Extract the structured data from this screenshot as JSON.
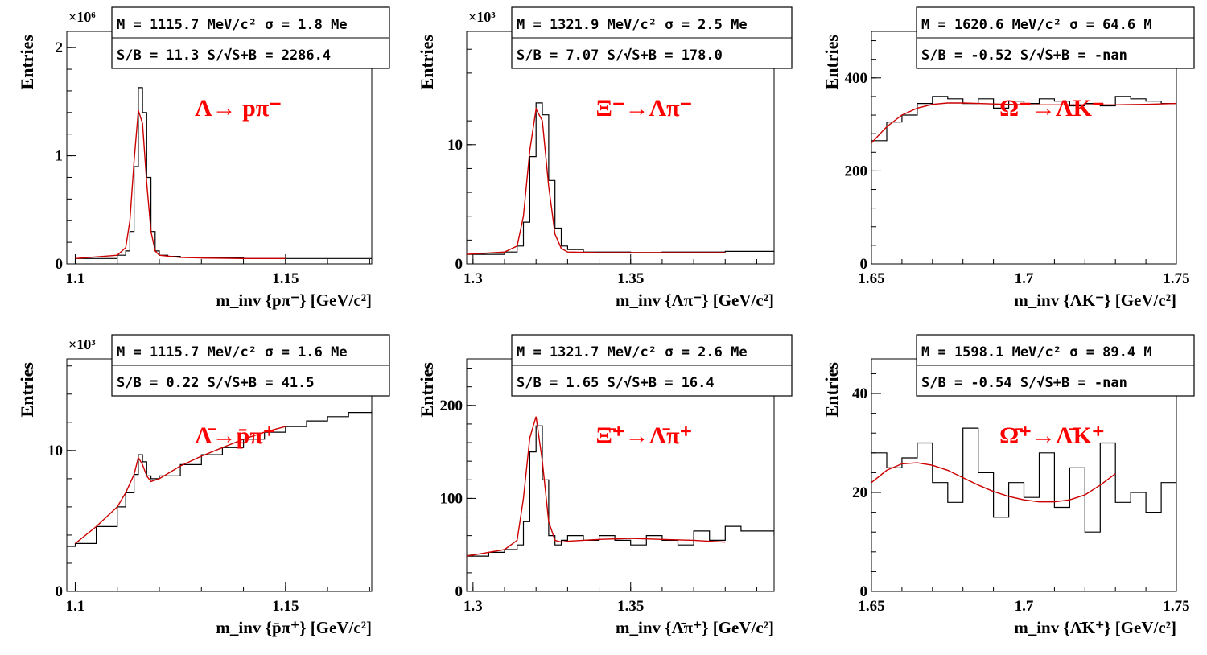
{
  "page": {
    "y_axis_label": "Entries"
  },
  "colors": {
    "histogram": "#000000",
    "fit": "#cc0000",
    "decay_label": "#ff0000",
    "frame": "#000000",
    "background": "#ffffff"
  },
  "chart_data": [
    {
      "type": "line",
      "histogram_style": "step",
      "title_label": "Λ→ pπ⁻",
      "stats": {
        "line1": "M = 1115.7 MeV/c² σ = 1.8 Me",
        "line2": "S/B = 11.3   S/√S+B = 2286.4"
      },
      "xlabel": "m_inv {pπ⁻} [GeV/c²]",
      "ylabel": "Entries",
      "y_multiplier": "×10⁶",
      "xlim": [
        1.098,
        1.1705
      ],
      "ylim": [
        0,
        2.15
      ],
      "xticks": [
        1.1,
        1.15
      ],
      "xtick_labels": [
        "1.1",
        "1.15"
      ],
      "yticks": [
        0,
        1,
        2
      ],
      "ytick_labels": [
        "0",
        "1",
        "2"
      ],
      "hist": {
        "x": [
          1.1,
          1.11,
          1.112,
          1.113,
          1.114,
          1.115,
          1.116,
          1.117,
          1.118,
          1.119,
          1.12,
          1.122,
          1.125,
          1.13,
          1.14,
          1.15,
          1.16,
          1.1705
        ],
        "y": [
          0.05,
          0.08,
          0.12,
          0.3,
          0.9,
          1.63,
          1.4,
          0.8,
          0.3,
          0.12,
          0.08,
          0.07,
          0.06,
          0.055,
          0.05,
          0.05,
          0.05,
          0.05
        ]
      },
      "fit": {
        "x": [
          1.1,
          1.11,
          1.112,
          1.113,
          1.114,
          1.115,
          1.116,
          1.117,
          1.118,
          1.119,
          1.12,
          1.125,
          1.13,
          1.14,
          1.15
        ],
        "y": [
          0.05,
          0.08,
          0.15,
          0.4,
          0.95,
          1.42,
          1.3,
          0.75,
          0.3,
          0.12,
          0.08,
          0.06,
          0.055,
          0.05,
          0.05
        ]
      }
    },
    {
      "type": "line",
      "histogram_style": "step",
      "title_label": "Ξ⁻→Λπ⁻",
      "stats": {
        "line1": "M = 1321.9 MeV/c² σ = 2.5 Me",
        "line2": "S/B = 7.07   S/√S+B = 178.0"
      },
      "xlabel": "m_inv {Λπ⁻} [GeV/c²]",
      "ylabel": "Entries",
      "y_multiplier": "×10³",
      "xlim": [
        1.298,
        1.3955
      ],
      "ylim": [
        0,
        19.5
      ],
      "xticks": [
        1.3,
        1.35
      ],
      "xtick_labels": [
        "1.3",
        "1.35"
      ],
      "yticks": [
        0,
        10
      ],
      "ytick_labels": [
        "0",
        "10"
      ],
      "hist": {
        "x": [
          1.298,
          1.31,
          1.314,
          1.316,
          1.318,
          1.32,
          1.322,
          1.324,
          1.326,
          1.328,
          1.33,
          1.335,
          1.34,
          1.35,
          1.36,
          1.37,
          1.38,
          1.3955
        ],
        "y": [
          0.8,
          1.0,
          1.5,
          3.5,
          9.0,
          13.5,
          12.5,
          7.0,
          3.0,
          1.5,
          1.2,
          1.0,
          1.0,
          0.95,
          1.0,
          1.0,
          1.05,
          1.0
        ]
      },
      "fit": {
        "x": [
          1.298,
          1.31,
          1.314,
          1.316,
          1.318,
          1.32,
          1.322,
          1.324,
          1.326,
          1.328,
          1.33,
          1.34,
          1.35,
          1.36,
          1.37,
          1.38
        ],
        "y": [
          0.8,
          1.0,
          1.5,
          4.0,
          9.5,
          13.0,
          12.0,
          6.5,
          2.5,
          1.3,
          1.0,
          0.95,
          0.95,
          0.95,
          0.95,
          0.95
        ]
      }
    },
    {
      "type": "line",
      "histogram_style": "step",
      "title_label": "Ω⁻→ΛK⁻",
      "stats": {
        "line1": "M = 1620.6 MeV/c² σ = 64.6 M",
        "line2": "S/B = -0.52   S/√S+B = -nan"
      },
      "xlabel": "m_inv {ΛK⁻} [GeV/c²]",
      "ylabel": "Entries",
      "y_multiplier": "",
      "xlim": [
        1.65,
        1.75
      ],
      "ylim": [
        0,
        500
      ],
      "xticks": [
        1.65,
        1.7,
        1.75
      ],
      "xtick_labels": [
        "1.65",
        "1.7",
        "1.75"
      ],
      "yticks": [
        0,
        200,
        400
      ],
      "ytick_labels": [
        "0",
        "200",
        "400"
      ],
      "hist": {
        "x": [
          1.65,
          1.655,
          1.66,
          1.665,
          1.67,
          1.675,
          1.68,
          1.685,
          1.69,
          1.695,
          1.7,
          1.705,
          1.71,
          1.715,
          1.72,
          1.725,
          1.73,
          1.735,
          1.74,
          1.745,
          1.75
        ],
        "y": [
          265,
          305,
          320,
          345,
          360,
          355,
          345,
          355,
          335,
          350,
          345,
          355,
          350,
          340,
          345,
          340,
          360,
          355,
          350,
          345,
          335
        ]
      },
      "fit": {
        "x": [
          1.65,
          1.655,
          1.66,
          1.665,
          1.67,
          1.675,
          1.68,
          1.69,
          1.7,
          1.71,
          1.72,
          1.73,
          1.74,
          1.75
        ],
        "y": [
          260,
          295,
          320,
          335,
          343,
          346,
          346,
          344,
          342,
          342,
          342,
          342,
          343,
          345
        ]
      }
    },
    {
      "type": "line",
      "histogram_style": "step",
      "title_label": "Λ̄→p̄π⁺",
      "stats": {
        "line1": "M = 1115.7 MeV/c² σ = 1.6 Me",
        "line2": "S/B = 0.22   S/√S+B = 41.5"
      },
      "xlabel": "m_inv {p̄π⁺} [GeV/c²]",
      "ylabel": "Entries",
      "y_multiplier": "×10³",
      "xlim": [
        1.098,
        1.1705
      ],
      "ylim": [
        0,
        16.5
      ],
      "xticks": [
        1.1,
        1.15
      ],
      "xtick_labels": [
        "1.1",
        "1.15"
      ],
      "yticks": [
        0,
        10
      ],
      "ytick_labels": [
        "0",
        "10"
      ],
      "hist": {
        "x": [
          1.098,
          1.1,
          1.105,
          1.11,
          1.112,
          1.114,
          1.115,
          1.116,
          1.117,
          1.118,
          1.12,
          1.125,
          1.13,
          1.135,
          1.14,
          1.145,
          1.15,
          1.155,
          1.16,
          1.165,
          1.1705
        ],
        "y": [
          3.2,
          3.4,
          4.6,
          6.0,
          7.0,
          8.3,
          9.7,
          9.2,
          8.2,
          8.0,
          8.2,
          9.0,
          9.7,
          10.2,
          10.8,
          11.3,
          11.7,
          12.1,
          12.4,
          12.7,
          12.9
        ]
      },
      "fit": {
        "x": [
          1.1,
          1.105,
          1.11,
          1.112,
          1.114,
          1.115,
          1.116,
          1.117,
          1.118,
          1.12,
          1.125,
          1.13,
          1.135,
          1.14,
          1.145,
          1.15
        ],
        "y": [
          3.4,
          4.6,
          6.0,
          7.0,
          8.3,
          9.5,
          9.0,
          8.2,
          7.8,
          8.0,
          8.9,
          9.6,
          10.2,
          10.8,
          11.3,
          11.7
        ]
      }
    },
    {
      "type": "line",
      "histogram_style": "step",
      "title_label": "Ξ̄⁺→Λ̄π⁺",
      "stats": {
        "line1": "M = 1321.7 MeV/c² σ = 2.6 Me",
        "line2": "S/B = 1.65   S/√S+B = 16.4"
      },
      "xlabel": "m_inv {Λ̄π⁺} [GeV/c²]",
      "ylabel": "Entries",
      "y_multiplier": "",
      "xlim": [
        1.298,
        1.3955
      ],
      "ylim": [
        0,
        250
      ],
      "xticks": [
        1.3,
        1.35
      ],
      "xtick_labels": [
        "1.3",
        "1.35"
      ],
      "yticks": [
        0,
        100,
        200
      ],
      "ytick_labels": [
        "0",
        "100",
        "200"
      ],
      "hist": {
        "x": [
          1.298,
          1.305,
          1.31,
          1.314,
          1.316,
          1.318,
          1.32,
          1.322,
          1.324,
          1.326,
          1.328,
          1.33,
          1.335,
          1.34,
          1.345,
          1.35,
          1.355,
          1.36,
          1.365,
          1.37,
          1.375,
          1.38,
          1.385,
          1.39,
          1.3955
        ],
        "y": [
          38,
          42,
          45,
          50,
          75,
          150,
          178,
          120,
          60,
          50,
          55,
          60,
          55,
          60,
          55,
          50,
          60,
          55,
          50,
          65,
          55,
          70,
          65,
          65,
          60
        ]
      },
      "fit": {
        "x": [
          1.298,
          1.305,
          1.31,
          1.314,
          1.316,
          1.318,
          1.32,
          1.322,
          1.324,
          1.326,
          1.328,
          1.33,
          1.34,
          1.35,
          1.36,
          1.37,
          1.38
        ],
        "y": [
          38,
          42,
          45,
          55,
          100,
          165,
          188,
          140,
          75,
          55,
          53,
          54,
          56,
          57,
          56,
          55,
          53
        ]
      }
    },
    {
      "type": "line",
      "histogram_style": "step",
      "title_label": "Ω̄⁺→Λ̄K⁺",
      "stats": {
        "line1": "M = 1598.1 MeV/c² σ = 89.4 M",
        "line2": "S/B = -0.54   S/√S+B = -nan"
      },
      "xlabel": "m_inv {Λ̄K⁺} [GeV/c²]",
      "ylabel": "Entries",
      "y_multiplier": "",
      "xlim": [
        1.65,
        1.75
      ],
      "ylim": [
        0,
        47
      ],
      "xticks": [
        1.65,
        1.7,
        1.75
      ],
      "xtick_labels": [
        "1.65",
        "1.7",
        "1.75"
      ],
      "yticks": [
        0,
        20,
        40
      ],
      "ytick_labels": [
        "0",
        "20",
        "40"
      ],
      "hist": {
        "x": [
          1.65,
          1.655,
          1.66,
          1.665,
          1.67,
          1.675,
          1.68,
          1.685,
          1.69,
          1.695,
          1.7,
          1.705,
          1.71,
          1.715,
          1.72,
          1.725,
          1.73,
          1.735,
          1.74,
          1.745,
          1.75
        ],
        "y": [
          28,
          25,
          27,
          30,
          22,
          18,
          33,
          24,
          15,
          22,
          19,
          28,
          17,
          25,
          12,
          30,
          18,
          20,
          16,
          22,
          15
        ]
      },
      "fit": {
        "x": [
          1.65,
          1.655,
          1.66,
          1.665,
          1.67,
          1.675,
          1.68,
          1.685,
          1.69,
          1.695,
          1.7,
          1.705,
          1.71,
          1.715,
          1.72,
          1.725,
          1.73
        ],
        "y": [
          22,
          24.5,
          25.8,
          26,
          25.5,
          24.5,
          23,
          21.5,
          20.2,
          19.2,
          18.5,
          18.1,
          18.1,
          18.5,
          19.5,
          21.5,
          23.8
        ]
      }
    }
  ]
}
